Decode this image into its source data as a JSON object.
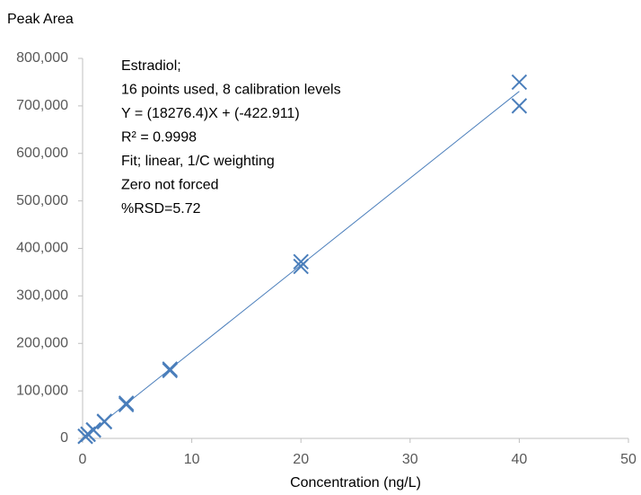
{
  "chart_data": {
    "type": "scatter",
    "y_label": "Peak Area",
    "x_label": "Concentration  (ng/L)",
    "annotation": [
      "Estradiol;",
      "16 points used, 8 calibration levels",
      "Y = (18276.4)X + (-422.911)",
      "R² = 0.9998",
      "Fit; linear, 1/C weighting",
      "Zero not forced",
      "%RSD=5.72"
    ],
    "x": [
      0.25,
      0.25,
      0.5,
      0.5,
      1,
      1,
      2,
      2,
      4,
      4,
      8,
      8,
      20,
      20,
      40,
      40
    ],
    "series": [
      {
        "color": "#4a7ebb",
        "values": [
          4500,
          4300,
          9000,
          8500,
          18000,
          17500,
          36000,
          35000,
          74000,
          71000,
          146000,
          143000,
          372000,
          362000,
          750000,
          700000
        ]
      }
    ],
    "fit": {
      "color": "#4a7ebb",
      "x": [
        0,
        40
      ],
      "values": [
        -422.911,
        730633.089
      ]
    },
    "xlim": [
      0,
      50
    ],
    "xticks": [
      0,
      10,
      20,
      30,
      40,
      50
    ],
    "ylim": [
      0,
      800000
    ],
    "yticks": [
      {
        "value": 0,
        "label": "0"
      },
      {
        "value": 100000,
        "label": "100,000"
      },
      {
        "value": 200000,
        "label": "200,000"
      },
      {
        "value": 300000,
        "label": "300,000"
      },
      {
        "value": 400000,
        "label": "400,000"
      },
      {
        "value": 500000,
        "label": "500,000"
      },
      {
        "value": 600000,
        "label": "600,000"
      },
      {
        "value": 700000,
        "label": "700,000"
      },
      {
        "value": 800000,
        "label": "800,000"
      }
    ]
  }
}
